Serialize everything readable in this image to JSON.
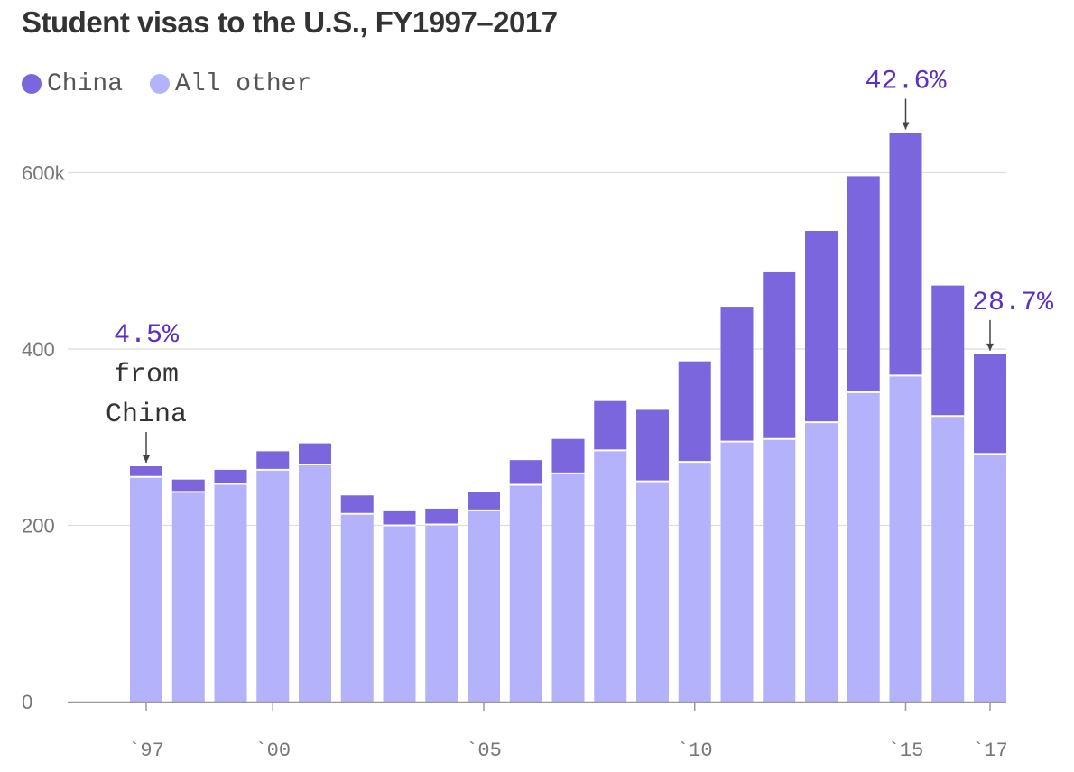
{
  "title": "Student visas to the U.S., FY1997–2017",
  "colors": {
    "china": "#7b66de",
    "other": "#b5b2fc",
    "annotation": "#5b2fc4",
    "grid": "#dddddd",
    "axis": "#999999"
  },
  "legend": [
    {
      "label": "China",
      "color": "#7b66de"
    },
    {
      "label": "All other",
      "color": "#b5b2fc"
    }
  ],
  "chart_data": {
    "type": "bar",
    "stacked": true,
    "title": "Student visas to the U.S., FY1997–2017",
    "xlabel": "",
    "ylabel": "",
    "ylim": [
      0,
      650
    ],
    "grid": true,
    "years": [
      1997,
      1998,
      1999,
      2000,
      2001,
      2002,
      2003,
      2004,
      2005,
      2006,
      2007,
      2008,
      2009,
      2010,
      2011,
      2012,
      2013,
      2014,
      2015,
      2016,
      2017
    ],
    "series": [
      {
        "name": "All other",
        "color": "#b5b2fc",
        "values": [
          255,
          238,
          247,
          263,
          269,
          213,
          200,
          201,
          217,
          246,
          259,
          285,
          250,
          272,
          295,
          298,
          317,
          351,
          370,
          324,
          281
        ]
      },
      {
        "name": "China",
        "color": "#7b66de",
        "values": [
          12,
          14,
          16,
          21,
          24,
          21,
          16,
          18,
          21,
          28,
          39,
          56,
          81,
          114,
          153,
          189,
          217,
          245,
          275,
          148,
          113
        ]
      }
    ],
    "y_ticks": [
      {
        "value": 0,
        "label": "0"
      },
      {
        "value": 200,
        "label": "200"
      },
      {
        "value": 400,
        "label": "400"
      },
      {
        "value": 600,
        "label": "600k"
      }
    ],
    "x_ticks": [
      {
        "year": 1997,
        "label": "`97"
      },
      {
        "year": 2000,
        "label": "`00"
      },
      {
        "year": 2005,
        "label": "`05"
      },
      {
        "year": 2010,
        "label": "`10"
      },
      {
        "year": 2015,
        "label": "`15"
      },
      {
        "year": 2017,
        "label": "`17"
      }
    ],
    "annotations": [
      {
        "year": 1997,
        "lines": [
          "4.5%",
          "from",
          "China"
        ],
        "value": "4.5%"
      },
      {
        "year": 2015,
        "lines": [
          "42.6%"
        ],
        "value": "42.6%"
      },
      {
        "year": 2017,
        "lines": [
          "28.7%"
        ],
        "value": "28.7%"
      }
    ]
  }
}
